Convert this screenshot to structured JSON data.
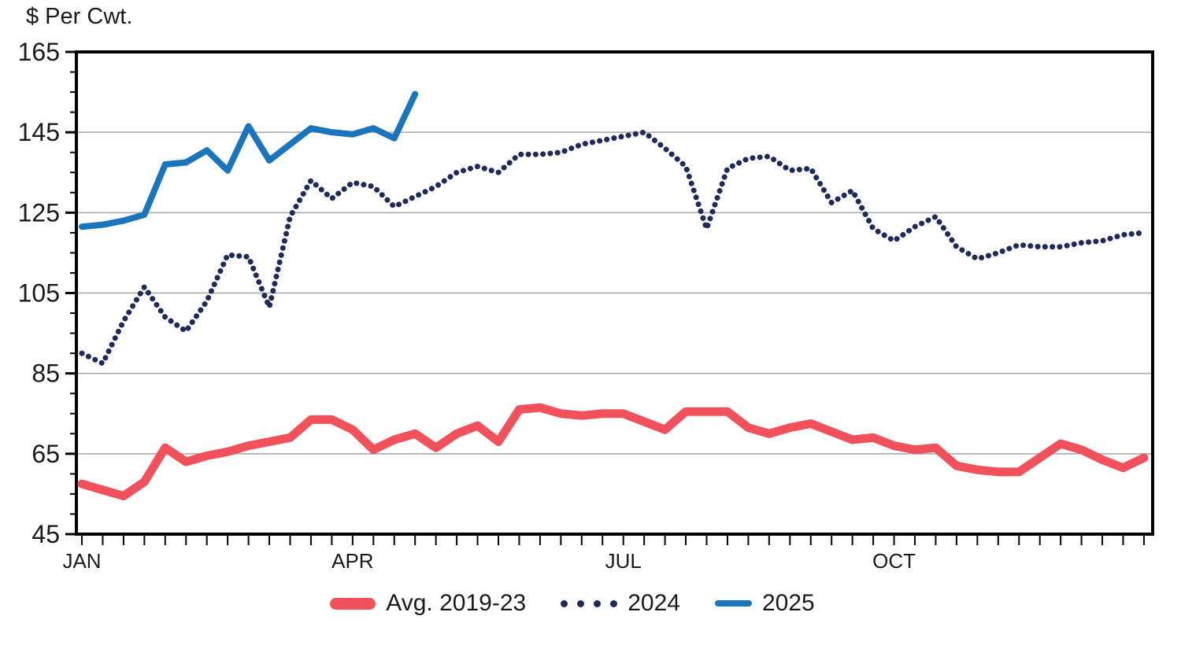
{
  "title": "$ Per Cwt.",
  "colors": {
    "avg": "#F0515A",
    "y2024": "#1E2A5A",
    "y2025": "#1B75BC",
    "grid": "#A5A5A5",
    "axis": "#000000",
    "text": "#1a1a1a"
  },
  "legend": {
    "items": [
      {
        "label": "Avg. 2019-23",
        "swatch": "thick-pill"
      },
      {
        "label": "2024",
        "swatch": "dots"
      },
      {
        "label": "2025",
        "swatch": "line"
      }
    ]
  },
  "chart_data": {
    "type": "line",
    "title": "$ Per Cwt.",
    "x_unit": "week-of-year",
    "weeks": 52,
    "ylim": [
      45,
      165
    ],
    "y_major_step": 20,
    "y_minor_step": 5,
    "y_tick_labels": [
      "45",
      "65",
      "85",
      "105",
      "125",
      "145",
      "165"
    ],
    "grid_values": [
      65,
      85,
      105,
      125,
      145
    ],
    "month_ticks": [
      {
        "label": "JAN",
        "week": 1
      },
      {
        "label": "APR",
        "week": 14
      },
      {
        "label": "JUL",
        "week": 27
      },
      {
        "label": "OCT",
        "week": 40
      }
    ],
    "legend_position": "bottom-center",
    "series": [
      {
        "name": "Avg. 2019-23",
        "style": "solid-thick",
        "color": "#F0515A",
        "values": [
          57.5,
          56,
          54.5,
          58,
          66.5,
          63,
          64.5,
          65.5,
          67,
          68,
          69,
          73.5,
          73.5,
          71,
          66,
          68.5,
          70,
          66.5,
          70,
          72,
          68,
          76,
          76.5,
          75,
          74.5,
          75,
          75,
          73,
          71,
          75.5,
          75.5,
          75.5,
          71.5,
          70,
          71.5,
          72.5,
          70.5,
          68.5,
          69,
          67,
          66,
          66.5,
          62,
          61,
          60.5,
          60.5,
          64,
          67.5,
          66,
          63.5,
          61.5,
          64
        ]
      },
      {
        "name": "2024",
        "style": "dotted",
        "color": "#1E2A5A",
        "values": [
          90,
          87.5,
          98,
          106.5,
          99,
          95.5,
          103,
          114.5,
          114,
          101.5,
          124,
          133,
          128.5,
          132.5,
          131.5,
          126.5,
          129,
          131.5,
          135,
          136.5,
          135,
          139.5,
          139.5,
          140,
          142,
          143,
          144,
          145,
          141,
          136.5,
          121,
          136,
          138.5,
          139,
          135.5,
          136,
          127.5,
          130.5,
          121,
          118,
          121.5,
          124,
          116.5,
          113.5,
          115,
          117,
          116.5,
          116.5,
          117.5,
          118,
          119.5,
          120
        ]
      },
      {
        "name": "2025",
        "style": "solid",
        "color": "#1B75BC",
        "values": [
          121.5,
          122,
          123,
          124.5,
          137,
          137.5,
          140.5,
          135.5,
          146.5,
          138,
          142,
          146,
          145,
          144.5,
          146,
          143.5,
          154.5
        ]
      }
    ]
  }
}
